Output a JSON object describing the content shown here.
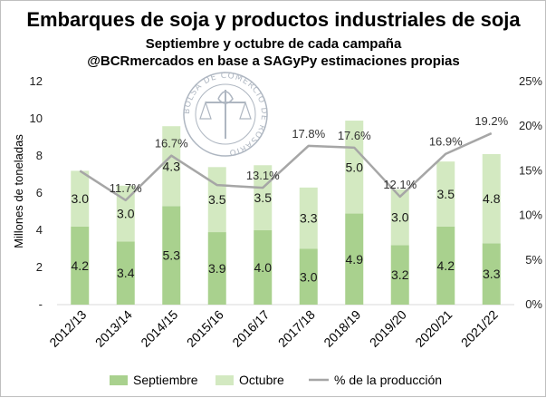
{
  "chart_data": {
    "type": "bar",
    "title": "Embarques de soja y productos industriales de soja",
    "subtitle": "Septiembre y octubre de cada campaña",
    "subtitle2": "@BCRmercados en base a SAGyPy estimaciones propias",
    "ylabel": "Millones de toneladas",
    "ylim": [
      0,
      12
    ],
    "y_ticks": [
      "-",
      "2",
      "4",
      "6",
      "8",
      "10",
      "12"
    ],
    "y2lim": [
      0,
      25
    ],
    "y2_ticks": [
      "0%",
      "5%",
      "10%",
      "15%",
      "20%",
      "25%"
    ],
    "categories": [
      "2012/13",
      "2013/14",
      "2014/15",
      "2015/16",
      "2016/17",
      "2017/18",
      "2018/19",
      "2019/20",
      "2020/21",
      "2021/22"
    ],
    "series": [
      {
        "name": "Septiembre",
        "kind": "stacked-bar",
        "color": "#a9d18e",
        "values": [
          4.2,
          3.4,
          5.3,
          3.9,
          4.0,
          3.0,
          4.9,
          3.2,
          4.2,
          3.3
        ],
        "labels": [
          "4.2",
          "3.4",
          "5.3",
          "3.9",
          "4.0",
          "3.0",
          "4.9",
          "3.2",
          "4.2",
          "3.3"
        ]
      },
      {
        "name": "Octubre",
        "kind": "stacked-bar",
        "color": "#d3e9c1",
        "values": [
          3.0,
          3.0,
          4.3,
          3.5,
          3.5,
          3.3,
          5.0,
          3.0,
          3.5,
          4.8
        ],
        "labels": [
          "3.0",
          "3.0",
          "4.3",
          "3.5",
          "3.5",
          "3.3",
          "5.0",
          "3.0",
          "3.5",
          "4.8"
        ]
      },
      {
        "name": "% de la producción",
        "kind": "line",
        "axis": "secondary",
        "color": "#a6a6a6",
        "values": [
          15.0,
          11.7,
          16.7,
          13.4,
          13.1,
          17.8,
          17.6,
          12.1,
          16.9,
          19.2
        ],
        "labels": [
          "",
          "11.7%",
          "16.7%",
          "",
          "13.1%",
          "17.8%",
          "17.6%",
          "12.1%",
          "16.9%",
          "19.2%"
        ]
      }
    ],
    "legend": [
      "Septiembre",
      "Octubre",
      "% de la producción"
    ],
    "legend_position": "bottom",
    "grid": false,
    "watermark": "BOLSA DE COMERCIO DE ROSARIO"
  }
}
